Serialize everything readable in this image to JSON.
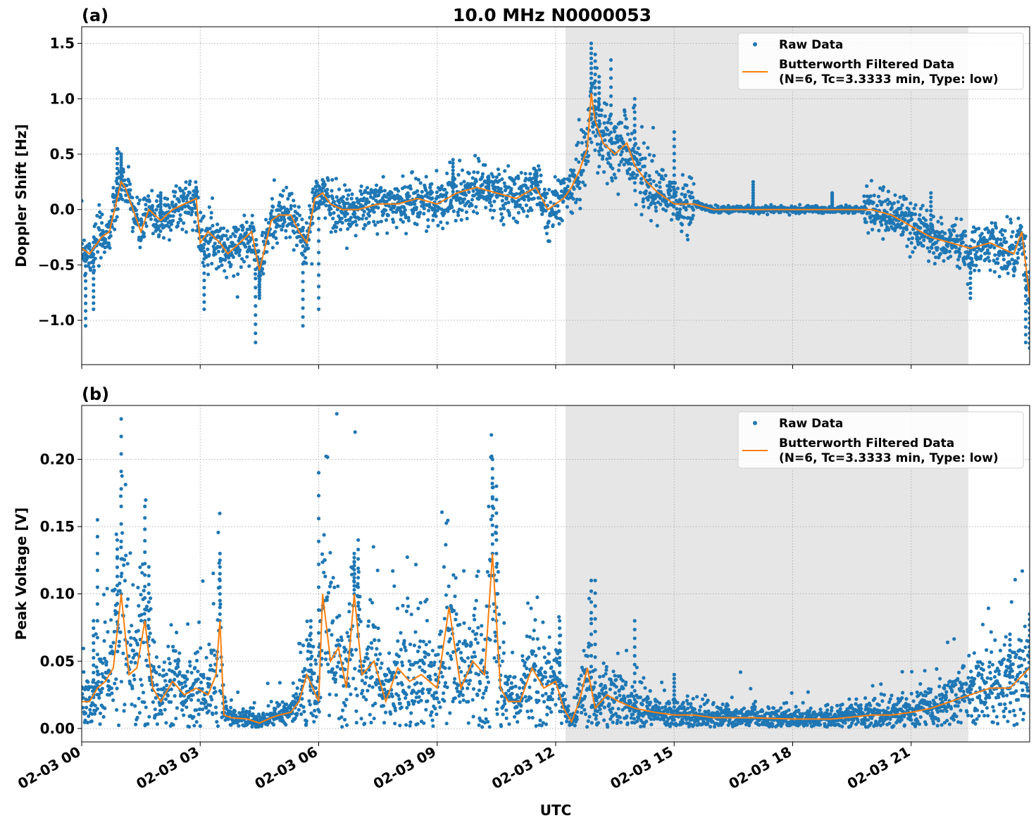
{
  "figure": {
    "title": "10.0 MHz N0000053",
    "xlabel": "UTC"
  },
  "colors": {
    "raw": "#1f77b4",
    "filtered": "#ff7f0e",
    "shade": "#e6e6e6",
    "grid": "#b0b0b0"
  },
  "chart_data": [
    {
      "type": "scatter",
      "panel_label": "(a)",
      "title": "10.0 MHz N0000053",
      "xlabel": "",
      "ylabel": "Doppler Shift [Hz]",
      "xlim_hours": [
        0,
        24
      ],
      "ylim": [
        -1.4,
        1.65
      ],
      "x_ticks": [
        0,
        3,
        6,
        9,
        12,
        15,
        18,
        21
      ],
      "x_tick_labels": [
        "02-03 00",
        "02-03 03",
        "02-03 06",
        "02-03 09",
        "02-03 12",
        "02-03 15",
        "02-03 18",
        "02-03 21"
      ],
      "y_ticks": [
        -1.0,
        -0.5,
        0.0,
        0.5,
        1.0,
        1.5
      ],
      "y_tick_labels": [
        "−1.0",
        "−0.5",
        "0.0",
        "0.5",
        "1.0",
        "1.5"
      ],
      "shaded_interval_hours": [
        12.25,
        22.45
      ],
      "grid": true,
      "legend_position": "top-right",
      "legend": [
        "Raw Data",
        "Butterworth Filtered Data",
        "(N=6, Tc=3.3333 min, Type: low)"
      ],
      "series": [
        {
          "name": "Butterworth Filtered Data",
          "style": "line",
          "x": [
            0,
            0.2,
            0.5,
            0.7,
            0.9,
            1.0,
            1.1,
            1.3,
            1.5,
            1.7,
            2.0,
            2.3,
            2.6,
            2.9,
            3.0,
            3.2,
            3.5,
            3.7,
            4.0,
            4.3,
            4.5,
            4.8,
            5.0,
            5.3,
            5.5,
            5.7,
            5.9,
            6.1,
            6.3,
            6.6,
            7.0,
            7.5,
            8.0,
            8.5,
            9.0,
            9.5,
            10.0,
            10.5,
            11.0,
            11.5,
            11.8,
            12.0,
            12.2,
            12.4,
            12.6,
            12.8,
            12.9,
            13.0,
            13.2,
            13.5,
            13.8,
            14.0,
            14.3,
            14.6,
            15.0,
            15.5,
            16.0,
            17.0,
            18.0,
            19.0,
            20.0,
            20.5,
            21.0,
            21.5,
            22.0,
            22.5,
            23.0,
            23.3,
            23.6,
            23.8,
            24.0
          ],
          "y": [
            -0.35,
            -0.4,
            -0.25,
            -0.2,
            0.1,
            0.25,
            0.2,
            0.0,
            -0.2,
            0.0,
            -0.1,
            0.0,
            0.05,
            0.1,
            -0.3,
            -0.2,
            -0.3,
            -0.4,
            -0.3,
            -0.2,
            -0.55,
            -0.1,
            -0.05,
            -0.05,
            -0.2,
            -0.3,
            0.1,
            0.15,
            0.05,
            0.0,
            0.0,
            0.05,
            0.05,
            0.1,
            0.05,
            0.15,
            0.2,
            0.15,
            0.1,
            0.2,
            0.0,
            0.05,
            0.1,
            0.2,
            0.35,
            0.55,
            1.05,
            0.8,
            0.6,
            0.5,
            0.6,
            0.4,
            0.25,
            0.15,
            0.05,
            0.05,
            0.0,
            0.0,
            0.0,
            0.0,
            0.0,
            -0.05,
            -0.15,
            -0.25,
            -0.3,
            -0.35,
            -0.3,
            -0.35,
            -0.4,
            -0.2,
            -0.8
          ]
        },
        {
          "name": "Raw Data",
          "style": "points",
          "description_values": "dense noisy scatter around filtered curve",
          "x": [
            0.1,
            0.3,
            0.9,
            1.0,
            2.0,
            2.9,
            3.1,
            4.4,
            4.5,
            5.6,
            6.0,
            9.4,
            10.3,
            11.5,
            12.9,
            13.0,
            13.1,
            13.4,
            14.0,
            15.0,
            17.0,
            19.0,
            21.5,
            22.5,
            23.9,
            24.0
          ],
          "y": [
            -1.05,
            -0.9,
            0.55,
            0.5,
            0.15,
            0.2,
            -0.9,
            -1.2,
            -0.8,
            -1.05,
            -0.9,
            0.45,
            0.3,
            0.35,
            1.5,
            1.4,
            1.2,
            1.35,
            1.0,
            0.7,
            0.25,
            0.15,
            0.15,
            -0.8,
            -1.2,
            -1.25
          ]
        }
      ]
    },
    {
      "type": "scatter",
      "panel_label": "(b)",
      "xlabel": "UTC",
      "ylabel": "Peak Voltage [V]",
      "xlim_hours": [
        0,
        24
      ],
      "ylim": [
        -0.01,
        0.24
      ],
      "x_ticks": [
        0,
        3,
        6,
        9,
        12,
        15,
        18,
        21
      ],
      "x_tick_labels": [
        "02-03 00",
        "02-03 03",
        "02-03 06",
        "02-03 09",
        "02-03 12",
        "02-03 15",
        "02-03 18",
        "02-03 21"
      ],
      "y_ticks": [
        0.0,
        0.05,
        0.1,
        0.15,
        0.2
      ],
      "y_tick_labels": [
        "0.00",
        "0.05",
        "0.10",
        "0.15",
        "0.20"
      ],
      "shaded_interval_hours": [
        12.25,
        22.45
      ],
      "grid": true,
      "legend_position": "top-right",
      "legend": [
        "Raw Data",
        "Butterworth Filtered Data",
        "(N=6, Tc=3.3333 min, Type: low)"
      ],
      "series": [
        {
          "name": "Butterworth Filtered Data",
          "style": "line",
          "x": [
            0,
            0.2,
            0.4,
            0.6,
            0.8,
            1.0,
            1.2,
            1.4,
            1.6,
            1.8,
            2.0,
            2.3,
            2.6,
            2.9,
            3.2,
            3.4,
            3.5,
            3.6,
            3.8,
            4.2,
            4.5,
            4.8,
            5.0,
            5.3,
            5.5,
            5.7,
            6.0,
            6.1,
            6.3,
            6.5,
            6.7,
            6.9,
            7.1,
            7.4,
            7.7,
            8.0,
            8.3,
            8.6,
            9.0,
            9.3,
            9.6,
            9.9,
            10.2,
            10.4,
            10.6,
            10.8,
            11.1,
            11.4,
            11.7,
            12.0,
            12.2,
            12.4,
            12.6,
            12.8,
            13.0,
            13.3,
            13.6,
            14.0,
            14.5,
            15.0,
            15.5,
            16.0,
            17.0,
            18.0,
            19.0,
            20.0,
            20.5,
            21.0,
            21.5,
            22.0,
            22.5,
            23.0,
            23.5,
            24.0
          ],
          "y": [
            0.02,
            0.02,
            0.03,
            0.035,
            0.045,
            0.1,
            0.04,
            0.045,
            0.08,
            0.03,
            0.02,
            0.035,
            0.025,
            0.03,
            0.025,
            0.04,
            0.08,
            0.01,
            0.008,
            0.007,
            0.004,
            0.008,
            0.01,
            0.012,
            0.02,
            0.04,
            0.02,
            0.1,
            0.05,
            0.06,
            0.03,
            0.1,
            0.04,
            0.05,
            0.02,
            0.045,
            0.035,
            0.04,
            0.03,
            0.09,
            0.03,
            0.05,
            0.04,
            0.13,
            0.03,
            0.02,
            0.02,
            0.045,
            0.03,
            0.035,
            0.015,
            0.005,
            0.02,
            0.045,
            0.015,
            0.025,
            0.02,
            0.015,
            0.012,
            0.01,
            0.01,
            0.008,
            0.008,
            0.007,
            0.007,
            0.01,
            0.01,
            0.012,
            0.015,
            0.02,
            0.025,
            0.03,
            0.03,
            0.045
          ]
        },
        {
          "name": "Raw Data",
          "style": "points",
          "x": [
            0.3,
            0.4,
            0.9,
            1.0,
            1.6,
            1.7,
            3.5,
            5.8,
            6.0,
            6.9,
            7.0,
            10.4,
            10.5,
            12.1,
            12.9,
            13.0,
            14.0,
            15.0,
            23.5,
            24.0
          ],
          "y": [
            0.08,
            0.155,
            0.14,
            0.23,
            0.165,
            0.12,
            0.13,
            0.08,
            0.19,
            0.13,
            0.14,
            0.2,
            0.18,
            0.08,
            0.11,
            0.11,
            0.08,
            0.04,
            0.07,
            0.085
          ]
        }
      ]
    }
  ]
}
